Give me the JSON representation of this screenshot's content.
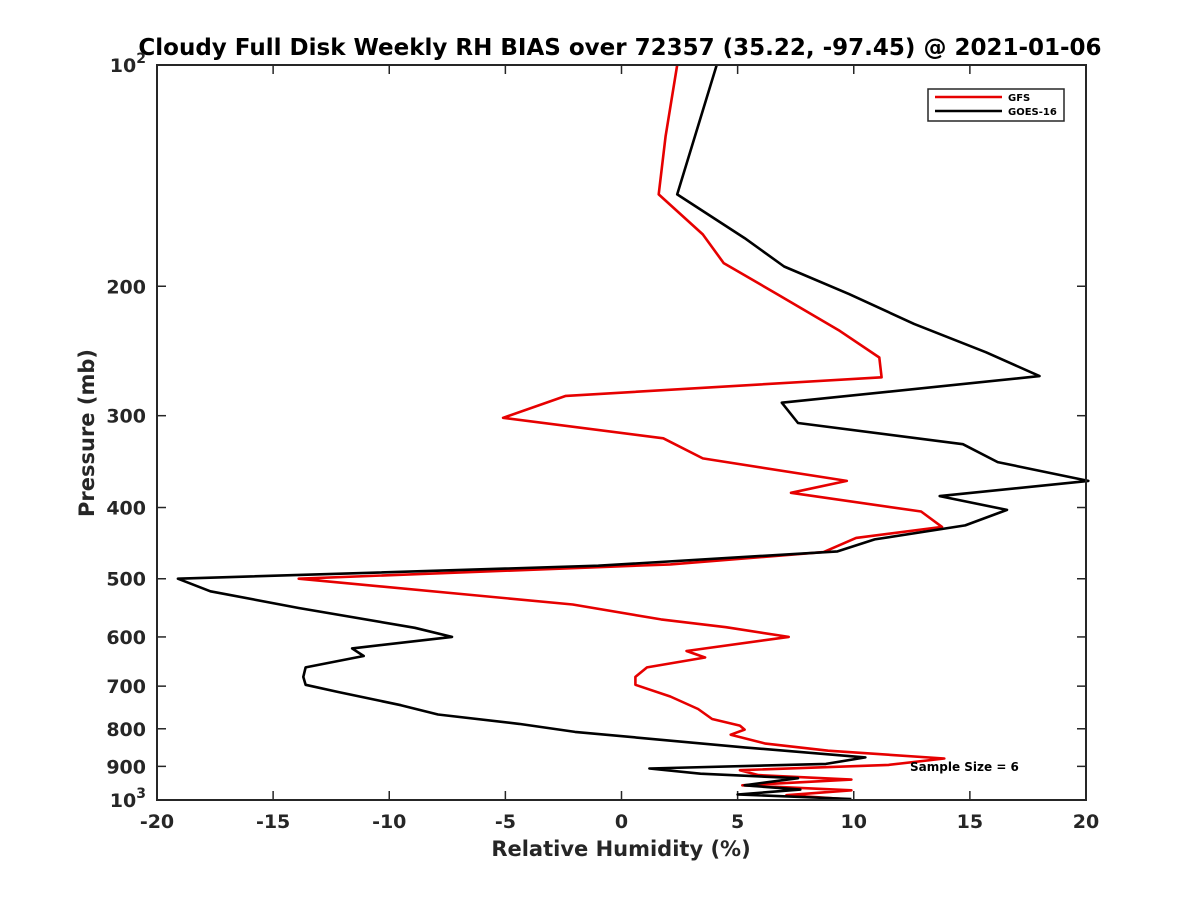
{
  "chart_data": {
    "type": "line",
    "title": "Cloudy Full Disk Weekly RH BIAS over 72357 (35.22, -97.45) @ 2021-01-06",
    "xlabel": "Relative Humidity (%)",
    "ylabel": "Pressure (mb)",
    "xlim": [
      -20,
      20
    ],
    "ylim": [
      100,
      1000
    ],
    "y_scale": "log",
    "y_reversed": true,
    "xticks": [
      -20,
      -15,
      -10,
      -5,
      0,
      5,
      10,
      15,
      20
    ],
    "xtick_labels": [
      "-20",
      "-15",
      "-10",
      "-5",
      "0",
      "5",
      "10",
      "15",
      "20"
    ],
    "yticks": [
      100,
      200,
      300,
      400,
      500,
      600,
      700,
      800,
      900,
      1000
    ],
    "ytick_labels": [
      {
        "base": "10",
        "exp": "2"
      },
      {
        "base": "200",
        "exp": ""
      },
      {
        "base": "300",
        "exp": ""
      },
      {
        "base": "400",
        "exp": ""
      },
      {
        "base": "500",
        "exp": ""
      },
      {
        "base": "600",
        "exp": ""
      },
      {
        "base": "700",
        "exp": ""
      },
      {
        "base": "800",
        "exp": ""
      },
      {
        "base": "900",
        "exp": ""
      },
      {
        "base": "10",
        "exp": "3"
      }
    ],
    "grid": false,
    "legend_position": "top-right",
    "annotation": "Sample Size = 6",
    "series": [
      {
        "name": "GFS",
        "color": "#e60000",
        "points": [
          [
            2.4,
            100
          ],
          [
            1.9,
            125
          ],
          [
            1.6,
            150
          ],
          [
            3.5,
            170
          ],
          [
            4.4,
            186
          ],
          [
            6.7,
            205
          ],
          [
            9.4,
            230
          ],
          [
            11.1,
            250
          ],
          [
            11.2,
            266
          ],
          [
            -2.4,
            282
          ],
          [
            -5.1,
            302
          ],
          [
            1.8,
            322
          ],
          [
            3.5,
            343
          ],
          [
            9.7,
            368
          ],
          [
            7.3,
            382
          ],
          [
            12.9,
            405
          ],
          [
            13.8,
            425
          ],
          [
            10.1,
            440
          ],
          [
            8.7,
            460
          ],
          [
            2.1,
            478
          ],
          [
            -13.9,
            500
          ],
          [
            -2.1,
            542
          ],
          [
            1.7,
            568
          ],
          [
            4.5,
            582
          ],
          [
            7.2,
            600
          ],
          [
            2.8,
            627
          ],
          [
            3.6,
            640
          ],
          [
            1.1,
            660
          ],
          [
            0.6,
            680
          ],
          [
            0.6,
            697
          ],
          [
            2.1,
            723
          ],
          [
            3.3,
            752
          ],
          [
            3.9,
            776
          ],
          [
            5.1,
            792
          ],
          [
            5.3,
            802
          ],
          [
            4.7,
            815
          ],
          [
            6.2,
            838
          ],
          [
            8.9,
            857
          ],
          [
            13.9,
            878
          ],
          [
            11.5,
            896
          ],
          [
            5.1,
            911
          ],
          [
            5.9,
            925
          ],
          [
            9.9,
            938
          ],
          [
            5.2,
            955
          ],
          [
            9.9,
            970
          ],
          [
            7.1,
            985
          ],
          [
            9.6,
            997
          ]
        ]
      },
      {
        "name": "GOES-16",
        "color": "#000000",
        "points": [
          [
            4.1,
            100
          ],
          [
            2.4,
            150
          ],
          [
            5.3,
            172
          ],
          [
            7.0,
            188
          ],
          [
            9.8,
            205
          ],
          [
            12.6,
            225
          ],
          [
            15.7,
            246
          ],
          [
            18.0,
            265
          ],
          [
            6.9,
            288
          ],
          [
            7.6,
            307
          ],
          [
            14.7,
            328
          ],
          [
            16.2,
            347
          ],
          [
            20.1,
            368
          ],
          [
            13.7,
            386
          ],
          [
            16.6,
            403
          ],
          [
            14.8,
            423
          ],
          [
            10.9,
            442
          ],
          [
            9.3,
            459
          ],
          [
            -1.0,
            480
          ],
          [
            -19.1,
            500
          ],
          [
            -17.7,
            520
          ],
          [
            -13.9,
            548
          ],
          [
            -8.9,
            583
          ],
          [
            -7.3,
            600
          ],
          [
            -11.6,
            622
          ],
          [
            -11.1,
            637
          ],
          [
            -13.6,
            660
          ],
          [
            -13.7,
            680
          ],
          [
            -13.6,
            697
          ],
          [
            -12.2,
            713
          ],
          [
            -9.5,
            743
          ],
          [
            -7.9,
            765
          ],
          [
            -4.4,
            788
          ],
          [
            -2.0,
            808
          ],
          [
            5.3,
            848
          ],
          [
            10.5,
            875
          ],
          [
            8.8,
            893
          ],
          [
            1.2,
            906
          ],
          [
            3.4,
            921
          ],
          [
            7.6,
            934
          ],
          [
            5.3,
            955
          ],
          [
            7.7,
            968
          ],
          [
            5.0,
            983
          ],
          [
            9.9,
            997
          ]
        ]
      }
    ]
  }
}
